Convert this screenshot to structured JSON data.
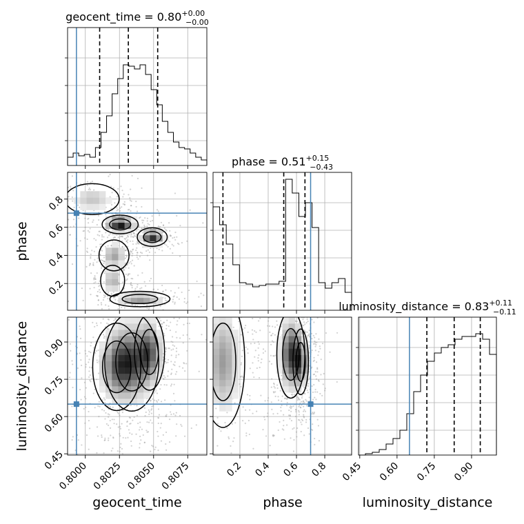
{
  "chart_data": {
    "type": "corner",
    "parameters": [
      "geocent_time",
      "phase",
      "luminosity_distance"
    ],
    "titles": [
      {
        "parameter": "geocent_time",
        "median": "0.80",
        "plus": "+0.00",
        "minus": "−0.00"
      },
      {
        "parameter": "phase",
        "median": "0.51",
        "plus": "+0.15",
        "minus": "−0.43"
      },
      {
        "parameter": "luminosity_distance",
        "median": "0.83",
        "plus": "+0.11",
        "minus": "−0.11"
      }
    ],
    "axes": {
      "geocent_time": {
        "range": [
          0.7987,
          0.8089
        ],
        "ticks": [
          0.8,
          0.8025,
          0.805,
          0.8075
        ],
        "tick_labels": [
          "0.8000",
          "0.8025",
          "0.8050",
          "0.8075"
        ],
        "label": "geocent_time"
      },
      "phase": {
        "range": [
          0.01,
          0.99
        ],
        "ticks": [
          0.2,
          0.4,
          0.6,
          0.8
        ],
        "tick_labels": [
          "0.2",
          "0.4",
          "0.6",
          "0.8"
        ],
        "label": "phase"
      },
      "luminosity_distance": {
        "range": [
          0.445,
          1.0
        ],
        "ticks": [
          0.45,
          0.6,
          0.75,
          0.9
        ],
        "tick_labels": [
          "0.45",
          "0.60",
          "0.75",
          "0.90"
        ],
        "label": "luminosity_distance"
      }
    },
    "truths": {
      "geocent_time": 0.79935,
      "phase": 0.7,
      "luminosity_distance": 0.65
    },
    "quantiles": {
      "geocent_time": [
        0.80105,
        0.80315,
        0.8053
      ],
      "phase": [
        0.08,
        0.51,
        0.66
      ],
      "luminosity_distance": [
        0.72,
        0.83,
        0.935
      ]
    },
    "histograms": {
      "geocent_time": [
        0.06,
        0.09,
        0.07,
        0.08,
        0.06,
        0.13,
        0.24,
        0.36,
        0.52,
        0.63,
        0.73,
        0.72,
        0.7,
        0.73,
        0.66,
        0.55,
        0.44,
        0.32,
        0.24,
        0.17,
        0.13,
        0.12,
        0.09,
        0.06,
        0.04
      ],
      "phase": [
        0.75,
        0.62,
        0.48,
        0.33,
        0.2,
        0.19,
        0.17,
        0.18,
        0.19,
        0.19,
        0.21,
        0.95,
        0.85,
        0.68,
        0.78,
        0.6,
        0.2,
        0.16,
        0.2,
        0.23,
        0.13
      ],
      "luminosity_distance": [
        0.0,
        0.01,
        0.02,
        0.04,
        0.08,
        0.12,
        0.18,
        0.3,
        0.46,
        0.58,
        0.68,
        0.74,
        0.78,
        0.8,
        0.84,
        0.86,
        0.86,
        0.88,
        0.84,
        0.73
      ]
    },
    "grid": true
  }
}
